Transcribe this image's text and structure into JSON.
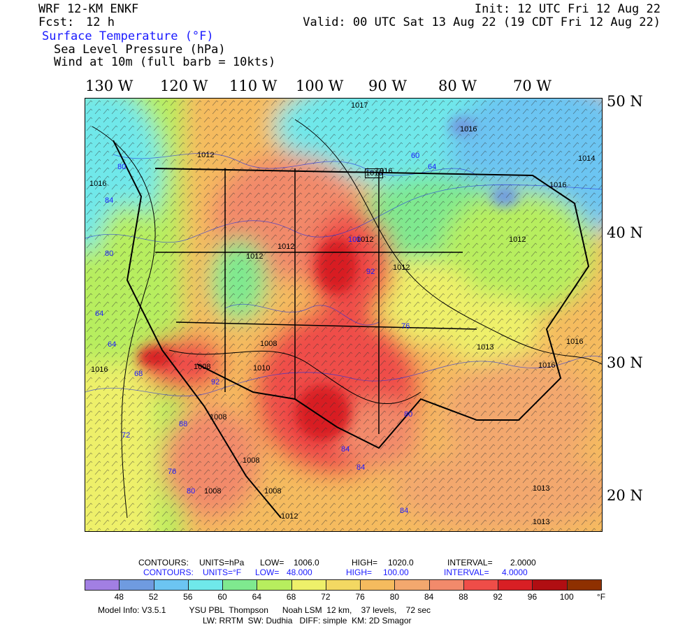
{
  "header": {
    "model": "WRF 12-KM ENKF",
    "fcst_label": "Fcst:",
    "fcst_value": "12 h",
    "init": "Init: 12 UTC Fri 12 Aug 22",
    "valid": "Valid: 00 UTC Sat 13 Aug 22 (19 CDT Fri 12 Aug 22)",
    "field1": "Surface Temperature (°F)",
    "field2": "Sea Level Pressure (hPa)",
    "field3": "Wind at 10m (full barb = 10kts)"
  },
  "map": {
    "lon_labels": [
      "130 W",
      "120 W",
      "110 W",
      "100 W",
      "90 W",
      "80 W",
      "70 W"
    ],
    "lat_labels": [
      "50 N",
      "40 N",
      "30 N",
      "20 N"
    ],
    "pressure_labels": [
      "1016",
      "1017",
      "1016",
      "1016",
      "1016",
      "1016",
      "1014",
      "1012",
      "1012",
      "1012",
      "1012",
      "1012",
      "1012",
      "1008",
      "1008",
      "1010",
      "1008",
      "1008",
      "1008",
      "1008",
      "1013",
      "1013",
      "1016",
      "1012",
      "1016",
      "1016",
      "1013"
    ],
    "temp_labels": [
      "80",
      "84",
      "64",
      "64",
      "68",
      "72",
      "76",
      "80",
      "80",
      "84",
      "84",
      "60",
      "64",
      "76",
      "80",
      "84",
      "92",
      "88",
      "100",
      "92"
    ]
  },
  "legend": {
    "contours_label": "CONTOURS:",
    "units_hpa": "UNITS=hPa",
    "low_label": "LOW=",
    "low_hpa": "1006.0",
    "high_label": "HIGH=",
    "high_hpa": "1020.0",
    "interval_label": "INTERVAL=",
    "interval_hpa": "2.0000",
    "units_f": "UNITS=°F",
    "low_f": "48.000",
    "high_f": "100.00",
    "interval_f": "4.0000",
    "colors": [
      "#a27fe3",
      "#6f9be0",
      "#6cc5f2",
      "#6fe8ea",
      "#7fe98f",
      "#b7ee5e",
      "#eef06a",
      "#f3d862",
      "#f5bb5e",
      "#f3a86e",
      "#f28a6b",
      "#ef4d48",
      "#d81f24",
      "#b00e12",
      "#8e3000"
    ],
    "ticks": [
      "48",
      "52",
      "56",
      "60",
      "64",
      "68",
      "72",
      "76",
      "80",
      "84",
      "88",
      "92",
      "96",
      "100"
    ],
    "unit": "°F"
  },
  "model_info": {
    "line1": "Model Info: V3.5.1          YSU PBL  Thompson      Noah LSM  12 km,    37 levels,    72 sec",
    "line2": "LW: RRTM  SW: Dudhia   DIFF: simple  KM: 2D Smagor"
  }
}
